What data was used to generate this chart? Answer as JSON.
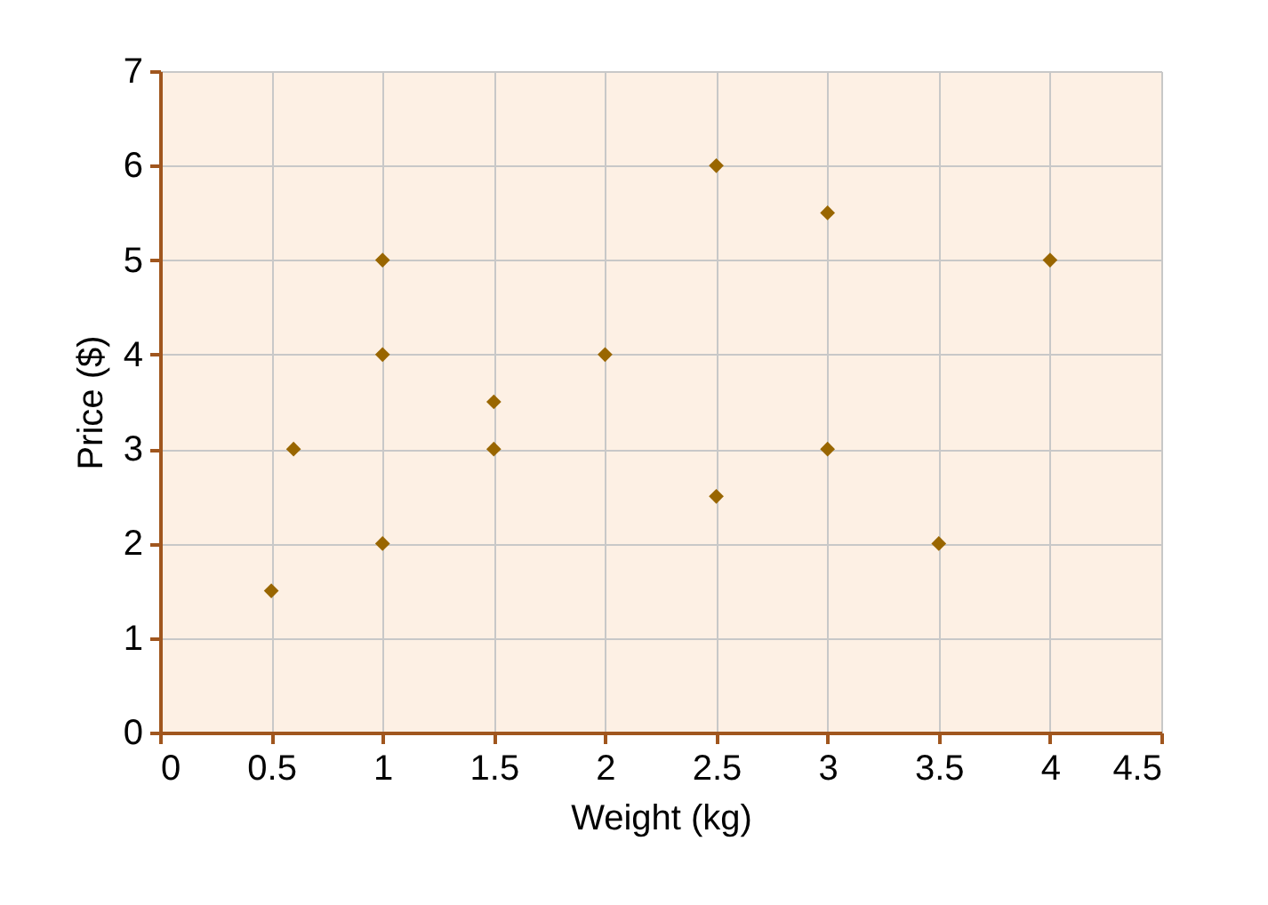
{
  "chart_data": {
    "type": "scatter",
    "xlabel": "Weight (kg)",
    "ylabel": "Price ($)",
    "x": [
      0.5,
      0.6,
      1,
      1,
      1,
      1.5,
      1.5,
      2,
      2.5,
      2.5,
      3,
      3,
      3.5,
      4
    ],
    "series": [
      {
        "color": "#996600",
        "values": [
          1.5,
          3,
          2,
          4,
          5,
          3,
          3.5,
          4,
          2.5,
          6,
          3,
          5.5,
          2,
          5
        ]
      }
    ],
    "xlim": [
      0,
      4.5
    ],
    "xticks": [
      0,
      0.5,
      1,
      1.5,
      2,
      2.5,
      3,
      3.5,
      4,
      4.5
    ],
    "ylim": [
      0,
      7
    ],
    "yticks": [
      0,
      1,
      2,
      3,
      4,
      5,
      6,
      7
    ],
    "grid": true,
    "marker": "diamond"
  }
}
